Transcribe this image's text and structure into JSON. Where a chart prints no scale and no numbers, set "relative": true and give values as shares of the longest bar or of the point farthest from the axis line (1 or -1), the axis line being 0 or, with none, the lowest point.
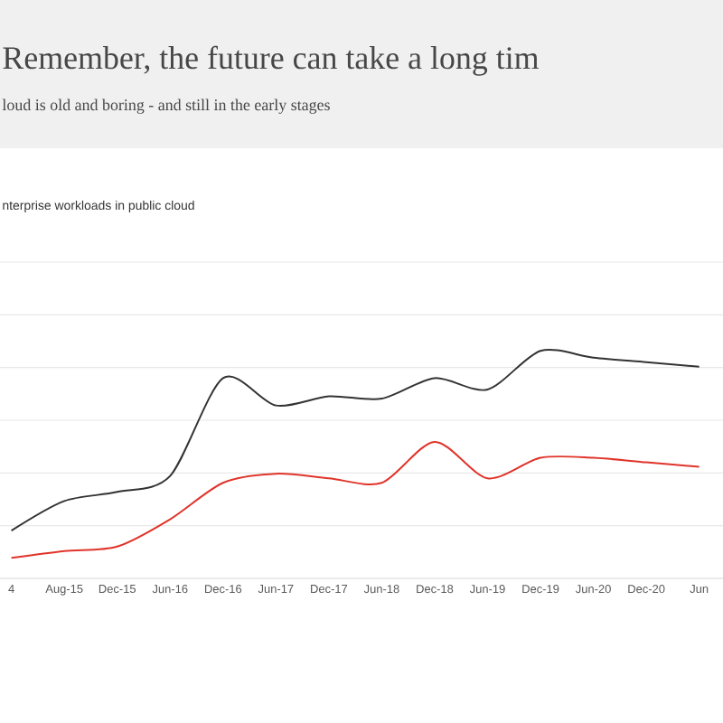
{
  "chart_data": {
    "type": "line",
    "title": "Remember, the future can take a long tim",
    "subtitle": "loud is old and boring - and still in the early stages",
    "annotations": [
      "nterprise workloads in public cloud"
    ],
    "categories": [
      "4",
      "Aug-15",
      "Dec-15",
      "Jun-16",
      "Dec-16",
      "Jun-17",
      "Dec-17",
      "Jun-18",
      "Dec-18",
      "Jun-19",
      "Dec-19",
      "Jun-20",
      "Dec-20",
      "Jun"
    ],
    "relative": true,
    "grid": "y",
    "series": [
      {
        "color": "#333333",
        "values": [
          0.21,
          0.34,
          0.38,
          0.45,
          0.88,
          0.76,
          0.8,
          0.79,
          0.88,
          0.83,
          1.0,
          0.97,
          0.95,
          0.93
        ]
      },
      {
        "color": "#e0342a",
        "values": [
          0.09,
          0.12,
          0.14,
          0.26,
          0.42,
          0.46,
          0.44,
          0.42,
          0.6,
          0.44,
          0.53,
          0.53,
          0.51,
          0.49
        ]
      }
    ]
  }
}
